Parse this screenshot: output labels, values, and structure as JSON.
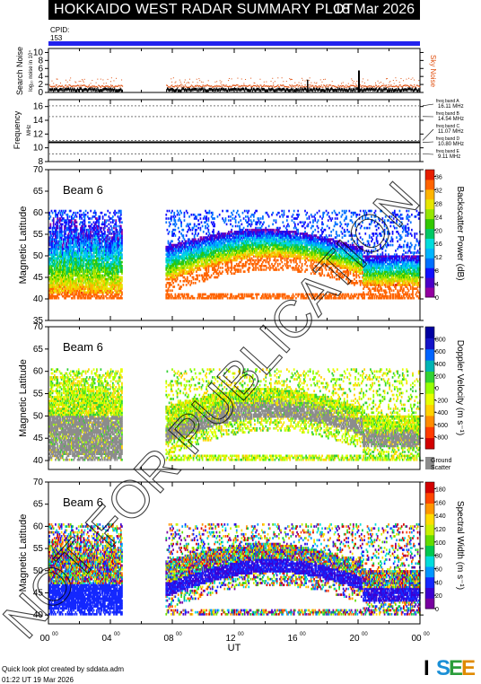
{
  "header": {
    "title": "HOKKAIDO WEST RADAR SUMMARY PLOT",
    "date": "18 Mar 2026",
    "cpid_label": "CPID:",
    "cpid_value": "153"
  },
  "colors": {
    "cpid_bar": "#2222ee",
    "noise_sky": "#e05010",
    "ground_scatter": "#8c8c8c"
  },
  "footer": {
    "credit": "Quick look plot created by sddata.adm",
    "created": "01:22 UT 19 Mar 2026",
    "logo": "ISEE"
  },
  "watermark": "NOT FOR PUBLICATION",
  "chart_data": [
    {
      "type": "scatter",
      "name": "noise",
      "ylabel": "Search Noise",
      "ylabel_sub": "log₁₀ noise in 10⁴",
      "legend": "Sky Noise",
      "yticks": [
        "0",
        "2",
        "4",
        "6",
        "8",
        "10"
      ],
      "ylim": [
        0,
        11
      ]
    },
    {
      "type": "line",
      "name": "frequency",
      "ylabel": "Frequency",
      "yunit": "MHz",
      "yticks": [
        "8",
        "10",
        "12",
        "14",
        "16"
      ],
      "ylim": [
        8,
        17
      ],
      "bands": [
        {
          "label": "freq band A",
          "value": "16.11 MHz"
        },
        {
          "label": "freq band B",
          "value": "14.54 MHz"
        },
        {
          "label": "freq band C",
          "value": "11.07 MHz"
        },
        {
          "label": "freq band D",
          "value": "10.80 MHz"
        },
        {
          "label": "freq band E",
          "value": "9.11 MHz"
        }
      ]
    },
    {
      "type": "heatmap",
      "name": "power",
      "beam": "Beam  6",
      "ylabel": "Magnetic Latitude",
      "yticks": [
        "35",
        "40",
        "45",
        "50",
        "55",
        "60",
        "65",
        "70"
      ],
      "ylim": [
        35,
        70
      ],
      "colorbar_label": "Backscatter Power (dB)",
      "colorbar_ticks": [
        "0",
        "4",
        "8",
        "12",
        "16",
        "20",
        "24",
        "28",
        "32",
        "36"
      ]
    },
    {
      "type": "heatmap",
      "name": "velocity",
      "beam": "Beam  6",
      "ylabel": "Magnetic Latitude",
      "yticks": [
        "40",
        "45",
        "50",
        "55",
        "60",
        "65",
        "70"
      ],
      "ylim": [
        38,
        70
      ],
      "colorbar_label": "Doppler Velocity (m s⁻¹)",
      "colorbar_ticks": [
        "-800",
        "-600",
        "-400",
        "-200",
        "0",
        "200",
        "400",
        "600",
        "800"
      ],
      "gs_label": [
        "Ground",
        "Scatter"
      ]
    },
    {
      "type": "heatmap",
      "name": "width",
      "beam": "Beam  6",
      "ylabel": "Magnetic Latitude",
      "yticks": [
        "40",
        "45",
        "50",
        "55",
        "60",
        "65",
        "70"
      ],
      "ylim": [
        38,
        70
      ],
      "colorbar_label": "Spectral Width (m s⁻¹)",
      "colorbar_ticks": [
        "0",
        "20",
        "40",
        "60",
        "80",
        "100",
        "120",
        "140",
        "160",
        "180"
      ]
    }
  ],
  "x_axis": {
    "label": "UT",
    "ticks": [
      "00",
      "04",
      "08",
      "12",
      "16",
      "20",
      "00"
    ],
    "tick_sup": "00",
    "range_hours": [
      0,
      24
    ]
  }
}
